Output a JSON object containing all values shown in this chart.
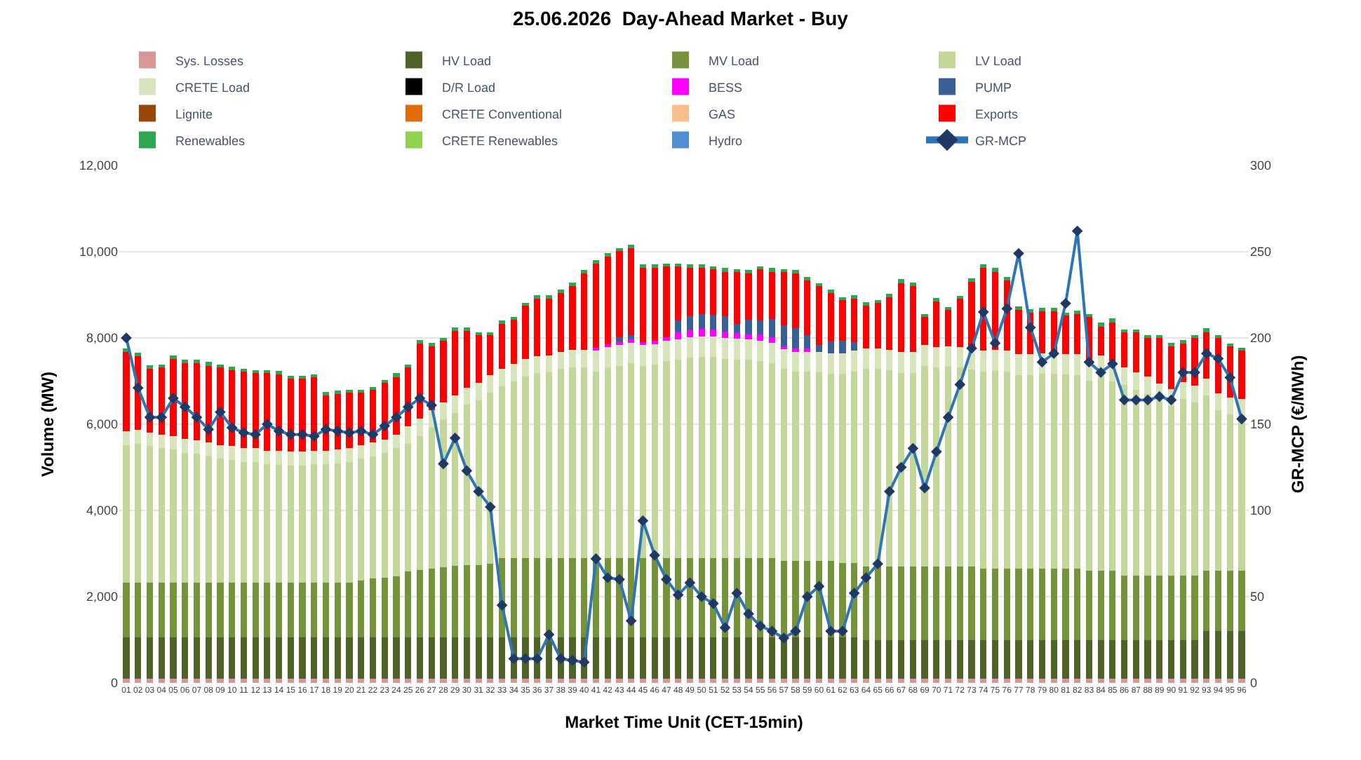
{
  "chart_data": {
    "type": "bar",
    "stacked": true,
    "title": "25.06.2026  Day-Ahead Market - Buy",
    "xlabel": "Market Time Unit (CET-15min)",
    "ylabel": "Volume (MW)",
    "y2label": "GR-MCP (€/MWh)",
    "categories": [
      "01",
      "02",
      "03",
      "04",
      "05",
      "06",
      "07",
      "08",
      "09",
      "10",
      "11",
      "12",
      "13",
      "14",
      "15",
      "16",
      "17",
      "18",
      "19",
      "20",
      "21",
      "22",
      "23",
      "24",
      "25",
      "26",
      "27",
      "28",
      "29",
      "30",
      "31",
      "32",
      "33",
      "34",
      "35",
      "36",
      "37",
      "38",
      "39",
      "40",
      "41",
      "42",
      "43",
      "44",
      "45",
      "46",
      "47",
      "48",
      "49",
      "50",
      "51",
      "52",
      "53",
      "54",
      "55",
      "56",
      "57",
      "58",
      "59",
      "60",
      "61",
      "62",
      "63",
      "64",
      "65",
      "66",
      "67",
      "68",
      "69",
      "70",
      "71",
      "72",
      "73",
      "74",
      "75",
      "76",
      "77",
      "78",
      "79",
      "80",
      "81",
      "82",
      "83",
      "84",
      "85",
      "86",
      "87",
      "88",
      "89",
      "90",
      "91",
      "92",
      "93",
      "94",
      "95",
      "96"
    ],
    "ylim": [
      0,
      12000
    ],
    "yticks": [
      0,
      {
        "value": 2000,
        "label": "2,000"
      },
      {
        "value": 4000,
        "label": "4,000"
      },
      {
        "value": 6000,
        "label": "6,000"
      },
      {
        "value": 8000,
        "label": "8,000"
      },
      {
        "value": 10000,
        "label": "10,000"
      },
      {
        "value": 12000,
        "label": "12,000"
      }
    ],
    "y2lim": [
      0,
      300
    ],
    "y2ticks": [
      0,
      50,
      100,
      150,
      200,
      250,
      300
    ],
    "grid": "y",
    "legend": "top",
    "marker": "diamond",
    "series": [
      {
        "name": "Sys. Losses",
        "color": "#da9694",
        "values": [
          100,
          100,
          100,
          100,
          100,
          100,
          100,
          100,
          100,
          100,
          100,
          100,
          100,
          100,
          100,
          100,
          100,
          100,
          100,
          100,
          100,
          100,
          100,
          100,
          100,
          100,
          100,
          100,
          100,
          100,
          100,
          100,
          100,
          100,
          100,
          100,
          100,
          100,
          100,
          100,
          100,
          100,
          100,
          100,
          100,
          100,
          100,
          100,
          100,
          100,
          100,
          100,
          100,
          100,
          100,
          100,
          100,
          100,
          100,
          100,
          100,
          100,
          100,
          100,
          100,
          100,
          100,
          100,
          100,
          100,
          100,
          100,
          100,
          100,
          100,
          100,
          100,
          100,
          100,
          100,
          100,
          100,
          100,
          100,
          100,
          100,
          100,
          100,
          100,
          100,
          100,
          100,
          100,
          100,
          100,
          100
        ]
      },
      {
        "name": "HV Load",
        "color": "#4f6228",
        "values": [
          950,
          950,
          950,
          950,
          950,
          950,
          950,
          950,
          950,
          950,
          950,
          950,
          950,
          950,
          950,
          950,
          950,
          950,
          950,
          950,
          950,
          950,
          950,
          950,
          950,
          950,
          950,
          950,
          950,
          950,
          950,
          950,
          950,
          950,
          950,
          950,
          950,
          950,
          950,
          950,
          950,
          950,
          950,
          950,
          950,
          950,
          950,
          950,
          950,
          950,
          950,
          950,
          950,
          950,
          950,
          950,
          950,
          950,
          950,
          950,
          950,
          950,
          950,
          900,
          900,
          900,
          900,
          900,
          900,
          900,
          900,
          900,
          900,
          900,
          900,
          900,
          900,
          900,
          900,
          900,
          900,
          900,
          900,
          900,
          900,
          900,
          900,
          900,
          900,
          900,
          900,
          900,
          1110,
          1110,
          1110,
          1110
        ]
      },
      {
        "name": "MV Load",
        "color": "#76933c",
        "values": [
          1280,
          1280,
          1280,
          1280,
          1280,
          1280,
          1280,
          1280,
          1280,
          1280,
          1280,
          1280,
          1280,
          1280,
          1280,
          1280,
          1280,
          1280,
          1280,
          1280,
          1320,
          1370,
          1390,
          1420,
          1540,
          1570,
          1600,
          1630,
          1670,
          1690,
          1690,
          1710,
          1850,
          1850,
          1850,
          1850,
          1850,
          1850,
          1850,
          1850,
          1850,
          1850,
          1850,
          1850,
          1850,
          1850,
          1850,
          1850,
          1850,
          1850,
          1850,
          1850,
          1850,
          1850,
          1850,
          1850,
          1780,
          1780,
          1780,
          1780,
          1780,
          1730,
          1730,
          1700,
          1700,
          1700,
          1700,
          1700,
          1700,
          1700,
          1700,
          1700,
          1700,
          1650,
          1650,
          1650,
          1650,
          1650,
          1650,
          1650,
          1650,
          1650,
          1600,
          1600,
          1600,
          1490,
          1490,
          1490,
          1490,
          1490,
          1490,
          1490,
          1390,
          1390,
          1390,
          1390
        ]
      },
      {
        "name": "LV Load",
        "color": "#c4d79b",
        "values": [
          3190,
          3220,
          3160,
          3110,
          3080,
          3010,
          2980,
          2920,
          2870,
          2840,
          2800,
          2800,
          2740,
          2730,
          2710,
          2710,
          2740,
          2740,
          2760,
          2800,
          2830,
          2830,
          2890,
          2970,
          2960,
          3110,
          3270,
          3430,
          3540,
          3710,
          3820,
          3980,
          3980,
          4100,
          4210,
          4280,
          4300,
          4380,
          4420,
          4420,
          4320,
          4410,
          4450,
          4510,
          4450,
          4480,
          4560,
          4590,
          4640,
          4660,
          4660,
          4620,
          4600,
          4590,
          4560,
          4510,
          4450,
          4390,
          4390,
          4370,
          4340,
          4390,
          4440,
          4580,
          4580,
          4550,
          4490,
          4490,
          4650,
          4610,
          4630,
          4610,
          4570,
          4570,
          4590,
          4570,
          4490,
          4490,
          4520,
          4520,
          4500,
          4490,
          4410,
          4520,
          4390,
          4420,
          4310,
          4210,
          4050,
          3930,
          4090,
          4010,
          4060,
          3720,
          3620,
          3590
        ]
      },
      {
        "name": "CRETE Load",
        "color": "#d8e4bc",
        "values": [
          320,
          320,
          320,
          320,
          320,
          320,
          320,
          320,
          320,
          320,
          320,
          320,
          320,
          320,
          320,
          320,
          320,
          320,
          320,
          320,
          320,
          320,
          320,
          320,
          400,
          400,
          400,
          400,
          400,
          400,
          400,
          400,
          400,
          400,
          400,
          400,
          400,
          400,
          400,
          400,
          480,
          480,
          480,
          480,
          480,
          480,
          480,
          480,
          480,
          480,
          480,
          480,
          480,
          480,
          480,
          480,
          480,
          480,
          480,
          480,
          480,
          480,
          480,
          480,
          480,
          480,
          480,
          480,
          480,
          480,
          480,
          480,
          480,
          480,
          480,
          480,
          480,
          480,
          480,
          480,
          480,
          480,
          480,
          480,
          480,
          400,
          400,
          400,
          400,
          400,
          400,
          400,
          400,
          400,
          400,
          400
        ]
      },
      {
        "name": "D/R Load",
        "color": "#000000",
        "values": [
          0,
          0,
          0,
          0,
          0,
          0,
          0,
          0,
          0,
          0,
          0,
          0,
          0,
          0,
          0,
          0,
          0,
          0,
          0,
          0,
          0,
          0,
          0,
          0,
          0,
          0,
          0,
          0,
          0,
          0,
          0,
          0,
          0,
          0,
          0,
          0,
          0,
          0,
          0,
          0,
          0,
          0,
          0,
          0,
          0,
          0,
          0,
          0,
          0,
          0,
          0,
          0,
          0,
          0,
          0,
          0,
          0,
          0,
          0,
          0,
          0,
          0,
          0,
          0,
          0,
          0,
          0,
          0,
          0,
          0,
          0,
          0,
          0,
          0,
          0,
          0,
          0,
          0,
          0,
          0,
          0,
          0,
          0,
          0,
          0,
          0,
          0,
          0,
          0,
          0,
          0,
          0,
          0,
          0,
          0,
          0
        ]
      },
      {
        "name": "BESS",
        "color": "#ff00ff",
        "values": [
          0,
          0,
          0,
          0,
          0,
          0,
          0,
          0,
          0,
          0,
          0,
          0,
          0,
          0,
          0,
          0,
          0,
          0,
          0,
          0,
          0,
          0,
          0,
          0,
          0,
          0,
          0,
          0,
          0,
          0,
          0,
          0,
          0,
          0,
          0,
          0,
          0,
          0,
          0,
          0,
          80,
          70,
          80,
          70,
          80,
          70,
          80,
          160,
          160,
          170,
          160,
          150,
          130,
          110,
          140,
          130,
          50,
          50,
          50,
          0,
          0,
          0,
          0,
          0,
          0,
          0,
          0,
          0,
          0,
          0,
          0,
          0,
          0,
          0,
          0,
          0,
          0,
          0,
          0,
          0,
          0,
          0,
          0,
          0,
          0,
          0,
          0,
          0,
          0,
          0,
          0,
          0,
          0,
          0,
          0,
          0
        ]
      },
      {
        "name": "PUMP",
        "color": "#3a5f94",
        "values": [
          0,
          0,
          0,
          0,
          0,
          0,
          0,
          0,
          0,
          0,
          0,
          0,
          0,
          0,
          0,
          0,
          0,
          0,
          0,
          0,
          0,
          0,
          0,
          0,
          0,
          0,
          0,
          0,
          0,
          0,
          0,
          0,
          0,
          0,
          0,
          0,
          0,
          0,
          0,
          0,
          0,
          0,
          100,
          100,
          0,
          0,
          0,
          270,
          320,
          340,
          330,
          350,
          210,
          350,
          320,
          420,
          480,
          480,
          320,
          150,
          270,
          290,
          210,
          0,
          0,
          0,
          0,
          0,
          0,
          0,
          0,
          0,
          0,
          0,
          0,
          0,
          0,
          0,
          0,
          0,
          0,
          0,
          0,
          0,
          0,
          0,
          0,
          0,
          0,
          0,
          0,
          0,
          0,
          0,
          0,
          0
        ]
      },
      {
        "name": "Lignite",
        "color": "#974706",
        "values": [
          0,
          0,
          0,
          0,
          0,
          0,
          0,
          0,
          0,
          0,
          0,
          0,
          0,
          0,
          0,
          0,
          0,
          0,
          0,
          0,
          0,
          0,
          0,
          0,
          0,
          0,
          0,
          0,
          0,
          0,
          0,
          0,
          0,
          0,
          0,
          0,
          0,
          0,
          0,
          0,
          0,
          0,
          0,
          0,
          0,
          0,
          0,
          0,
          0,
          0,
          0,
          0,
          0,
          0,
          0,
          0,
          0,
          0,
          0,
          0,
          0,
          0,
          0,
          0,
          0,
          0,
          0,
          0,
          0,
          0,
          0,
          0,
          0,
          0,
          0,
          0,
          0,
          0,
          0,
          0,
          0,
          0,
          0,
          0,
          0,
          0,
          0,
          0,
          0,
          0,
          0,
          0,
          0,
          0,
          0,
          0
        ]
      },
      {
        "name": "CRETE Conventional",
        "color": "#e26b0a",
        "values": [
          0,
          0,
          0,
          0,
          0,
          0,
          0,
          0,
          0,
          0,
          0,
          0,
          0,
          0,
          0,
          0,
          0,
          0,
          0,
          0,
          0,
          0,
          0,
          0,
          0,
          0,
          0,
          0,
          0,
          0,
          0,
          0,
          0,
          0,
          0,
          0,
          0,
          0,
          0,
          0,
          0,
          0,
          0,
          0,
          0,
          0,
          0,
          0,
          0,
          0,
          0,
          0,
          0,
          0,
          0,
          0,
          0,
          0,
          0,
          0,
          0,
          0,
          0,
          0,
          0,
          0,
          0,
          0,
          0,
          0,
          0,
          0,
          0,
          0,
          0,
          0,
          0,
          0,
          0,
          0,
          0,
          0,
          0,
          0,
          0,
          0,
          0,
          0,
          0,
          0,
          0,
          0,
          0,
          0,
          0,
          0
        ]
      },
      {
        "name": "GAS",
        "color": "#fabf8f",
        "values": [
          0,
          0,
          0,
          0,
          0,
          0,
          0,
          0,
          0,
          0,
          0,
          0,
          0,
          0,
          0,
          0,
          0,
          0,
          0,
          0,
          0,
          0,
          0,
          0,
          0,
          0,
          0,
          0,
          0,
          0,
          0,
          0,
          0,
          0,
          0,
          0,
          0,
          0,
          0,
          0,
          0,
          0,
          0,
          0,
          0,
          0,
          0,
          0,
          0,
          0,
          0,
          0,
          0,
          0,
          0,
          0,
          0,
          0,
          0,
          0,
          0,
          0,
          0,
          0,
          0,
          0,
          0,
          0,
          0,
          0,
          0,
          0,
          0,
          0,
          0,
          0,
          0,
          0,
          0,
          0,
          0,
          0,
          0,
          0,
          0,
          0,
          0,
          0,
          0,
          0,
          0,
          0,
          0,
          0,
          0,
          0
        ]
      },
      {
        "name": "Exports",
        "color": "#ff0000",
        "values": [
          1860,
          1730,
          1490,
          1570,
          1810,
          1770,
          1800,
          1810,
          1810,
          1790,
          1770,
          1740,
          1800,
          1790,
          1700,
          1700,
          1700,
          1300,
          1310,
          1290,
          1220,
          1230,
          1310,
          1360,
          1380,
          1760,
          1510,
          1430,
          1520,
          1330,
          1110,
          930,
          1060,
          1030,
          1240,
          1350,
          1330,
          1380,
          1500,
          1790,
          1960,
          2040,
          2010,
          2040,
          1730,
          1710,
          1650,
          1270,
          1140,
          1090,
          1070,
          1060,
          1210,
          1080,
          1200,
          1120,
          1240,
          1280,
          1280,
          1380,
          1140,
          950,
          1020,
          1010,
          1060,
          1230,
          1630,
          1550,
          670,
          1080,
          850,
          1130,
          1580,
          1940,
          1840,
          1650,
          1060,
          990,
          990,
          990,
          900,
          950,
          1010,
          690,
          920,
          820,
          930,
          900,
          1060,
          1010,
          910,
          1100,
          1100,
          1280,
          1190,
          1130
        ]
      },
      {
        "name": "Renewables",
        "color": "#2ea652",
        "values": [
          60,
          60,
          60,
          60,
          60,
          60,
          60,
          60,
          60,
          60,
          60,
          60,
          60,
          60,
          60,
          60,
          60,
          60,
          60,
          60,
          60,
          60,
          60,
          60,
          60,
          60,
          60,
          60,
          60,
          60,
          60,
          60,
          60,
          60,
          60,
          60,
          60,
          60,
          60,
          60,
          60,
          60,
          60,
          60,
          60,
          60,
          60,
          60,
          60,
          60,
          60,
          60,
          60,
          60,
          60,
          60,
          60,
          60,
          60,
          60,
          60,
          60,
          60,
          60,
          60,
          60,
          60,
          60,
          60,
          60,
          60,
          60,
          60,
          60,
          60,
          60,
          60,
          60,
          60,
          60,
          60,
          60,
          60,
          60,
          60,
          60,
          60,
          60,
          60,
          60,
          60,
          60,
          60,
          60,
          60,
          60
        ]
      },
      {
        "name": "CRETE Renewables",
        "color": "#92d050",
        "values": [
          0,
          0,
          0,
          0,
          0,
          0,
          0,
          0,
          0,
          0,
          0,
          0,
          0,
          0,
          0,
          0,
          0,
          0,
          0,
          0,
          0,
          0,
          0,
          0,
          0,
          0,
          0,
          0,
          0,
          0,
          0,
          0,
          0,
          0,
          0,
          0,
          0,
          0,
          0,
          0,
          0,
          0,
          0,
          0,
          0,
          0,
          0,
          0,
          0,
          0,
          0,
          0,
          0,
          0,
          0,
          0,
          0,
          0,
          0,
          0,
          0,
          0,
          0,
          0,
          0,
          0,
          0,
          0,
          0,
          0,
          0,
          0,
          0,
          0,
          0,
          0,
          0,
          0,
          0,
          0,
          0,
          0,
          0,
          0,
          0,
          0,
          0,
          0,
          0,
          0,
          0,
          0,
          0,
          0,
          0,
          0
        ]
      },
      {
        "name": "Hydro",
        "color": "#538dd5",
        "values": [
          0,
          0,
          0,
          0,
          0,
          0,
          0,
          0,
          0,
          0,
          0,
          0,
          0,
          0,
          0,
          0,
          0,
          0,
          0,
          0,
          0,
          0,
          0,
          0,
          0,
          0,
          0,
          0,
          0,
          0,
          0,
          0,
          0,
          0,
          0,
          0,
          0,
          0,
          0,
          0,
          0,
          0,
          0,
          0,
          0,
          0,
          0,
          0,
          0,
          0,
          0,
          0,
          0,
          0,
          0,
          0,
          0,
          0,
          0,
          0,
          0,
          0,
          0,
          0,
          0,
          0,
          0,
          0,
          0,
          0,
          0,
          0,
          0,
          0,
          0,
          0,
          0,
          0,
          0,
          0,
          0,
          0,
          0,
          0,
          0,
          0,
          0,
          0,
          0,
          0,
          0,
          0,
          0,
          0,
          0,
          0
        ]
      },
      {
        "name": "GR-MCP",
        "type": "line",
        "axis": "y2",
        "color": "#2e75b6",
        "values": [
          200,
          171,
          154,
          154,
          165,
          160,
          154,
          147,
          157,
          148,
          145,
          144,
          150,
          146,
          144,
          144,
          143,
          147,
          146,
          145,
          146,
          144,
          149,
          154,
          160,
          165,
          161,
          127,
          142,
          123,
          111,
          102,
          45,
          14,
          14,
          14,
          28,
          14,
          13,
          12,
          72,
          61,
          60,
          36,
          94,
          74,
          60,
          51,
          58,
          50,
          46,
          32,
          52,
          40,
          33,
          30,
          26,
          30,
          50,
          56,
          30,
          30,
          52,
          61,
          69,
          111,
          125,
          136,
          113,
          134,
          154,
          173,
          194,
          215,
          197,
          217,
          249,
          206,
          186,
          191,
          220,
          262,
          186,
          180,
          185,
          164,
          164,
          164,
          166,
          164,
          180,
          180,
          191,
          188,
          177,
          153
        ]
      }
    ]
  }
}
